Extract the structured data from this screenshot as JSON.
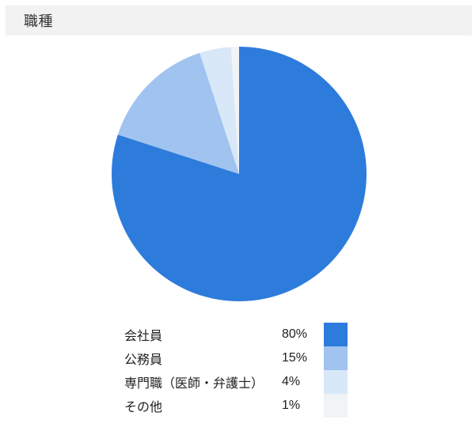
{
  "header": {
    "title": "職種",
    "background": "#f2f2f2",
    "text_color": "#333333"
  },
  "chart_data": {
    "type": "pie",
    "title": "職種",
    "categories": [
      "会社員",
      "公務員",
      "専門職（医師・弁護士）",
      "その他"
    ],
    "values": [
      80,
      15,
      4,
      1
    ],
    "value_labels": [
      "80%",
      "15%",
      "4%",
      "1%"
    ],
    "colors": [
      "#2d7cdc",
      "#a0c3f0",
      "#d8e8f9",
      "#f1f3f4"
    ],
    "start_angle_deg": 0,
    "direction": "clockwise",
    "legend_position": "bottom-left"
  }
}
